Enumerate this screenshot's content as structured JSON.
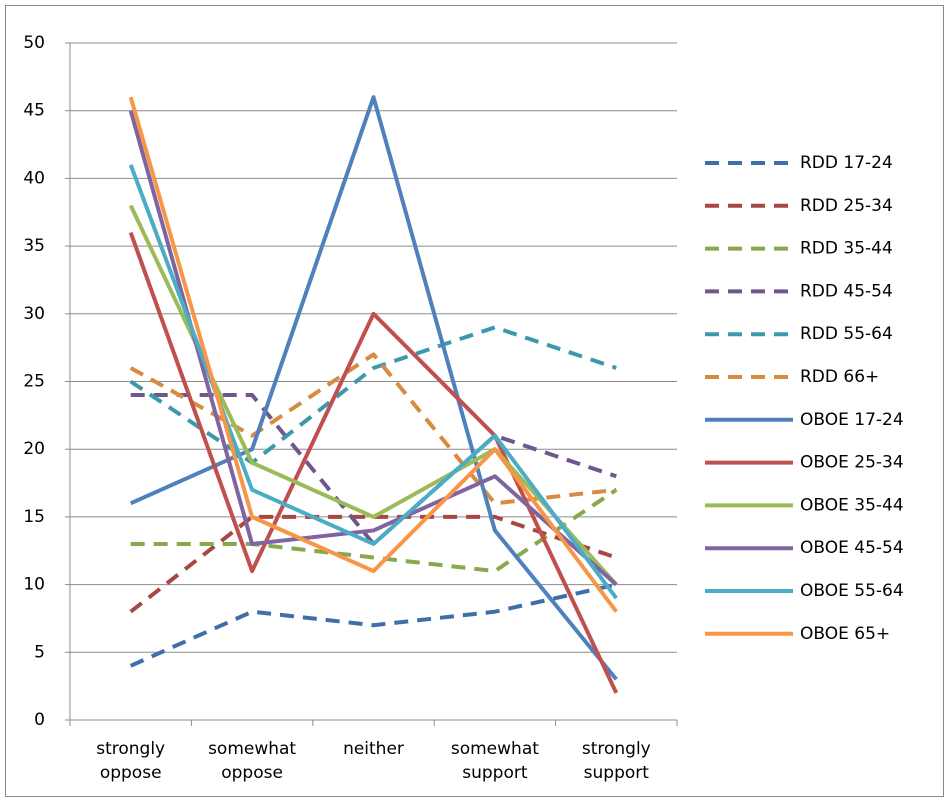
{
  "chart_data": {
    "type": "line",
    "categories": [
      "strongly oppose",
      "somewhat oppose",
      "neither",
      "somewhat support",
      "strongly support"
    ],
    "ylim": [
      0,
      50
    ],
    "yticks": [
      0,
      5,
      10,
      15,
      20,
      25,
      30,
      35,
      40,
      45,
      50
    ],
    "grid": true,
    "legend": "right",
    "series": [
      {
        "name": "RDD 17-24",
        "color": "#3f6fa8",
        "dashed": true,
        "values": [
          4,
          8,
          7,
          8,
          10
        ]
      },
      {
        "name": "RDD 25-34",
        "color": "#a84643",
        "dashed": true,
        "values": [
          8,
          15,
          15,
          15,
          12
        ]
      },
      {
        "name": "RDD 35-44",
        "color": "#88a84e",
        "dashed": true,
        "values": [
          13,
          13,
          12,
          11,
          17
        ]
      },
      {
        "name": "RDD 45-54",
        "color": "#6f578e",
        "dashed": true,
        "values": [
          24,
          24,
          13,
          21,
          18
        ]
      },
      {
        "name": "RDD 55-64",
        "color": "#3b98ad",
        "dashed": true,
        "values": [
          25,
          19,
          26,
          29,
          26
        ]
      },
      {
        "name": "RDD 66+",
        "color": "#d88a3f",
        "dashed": true,
        "values": [
          26,
          21,
          27,
          16,
          17
        ]
      },
      {
        "name": "OBOE 17-24",
        "color": "#4f81bd",
        "dashed": false,
        "values": [
          16,
          20,
          46,
          14,
          3
        ]
      },
      {
        "name": "OBOE 25-34",
        "color": "#c0504d",
        "dashed": false,
        "values": [
          36,
          11,
          30,
          21,
          2
        ]
      },
      {
        "name": "OBOE 35-44",
        "color": "#9bbb59",
        "dashed": false,
        "values": [
          38,
          19,
          15,
          20,
          10
        ]
      },
      {
        "name": "OBOE 45-54",
        "color": "#8064a2",
        "dashed": false,
        "values": [
          45,
          13,
          14,
          18,
          10
        ]
      },
      {
        "name": "OBOE 55-64",
        "color": "#4bacc6",
        "dashed": false,
        "values": [
          41,
          17,
          13,
          21,
          9
        ]
      },
      {
        "name": "OBOE 65+",
        "color": "#f79646",
        "dashed": false,
        "values": [
          46,
          15,
          11,
          20,
          8
        ]
      }
    ]
  }
}
